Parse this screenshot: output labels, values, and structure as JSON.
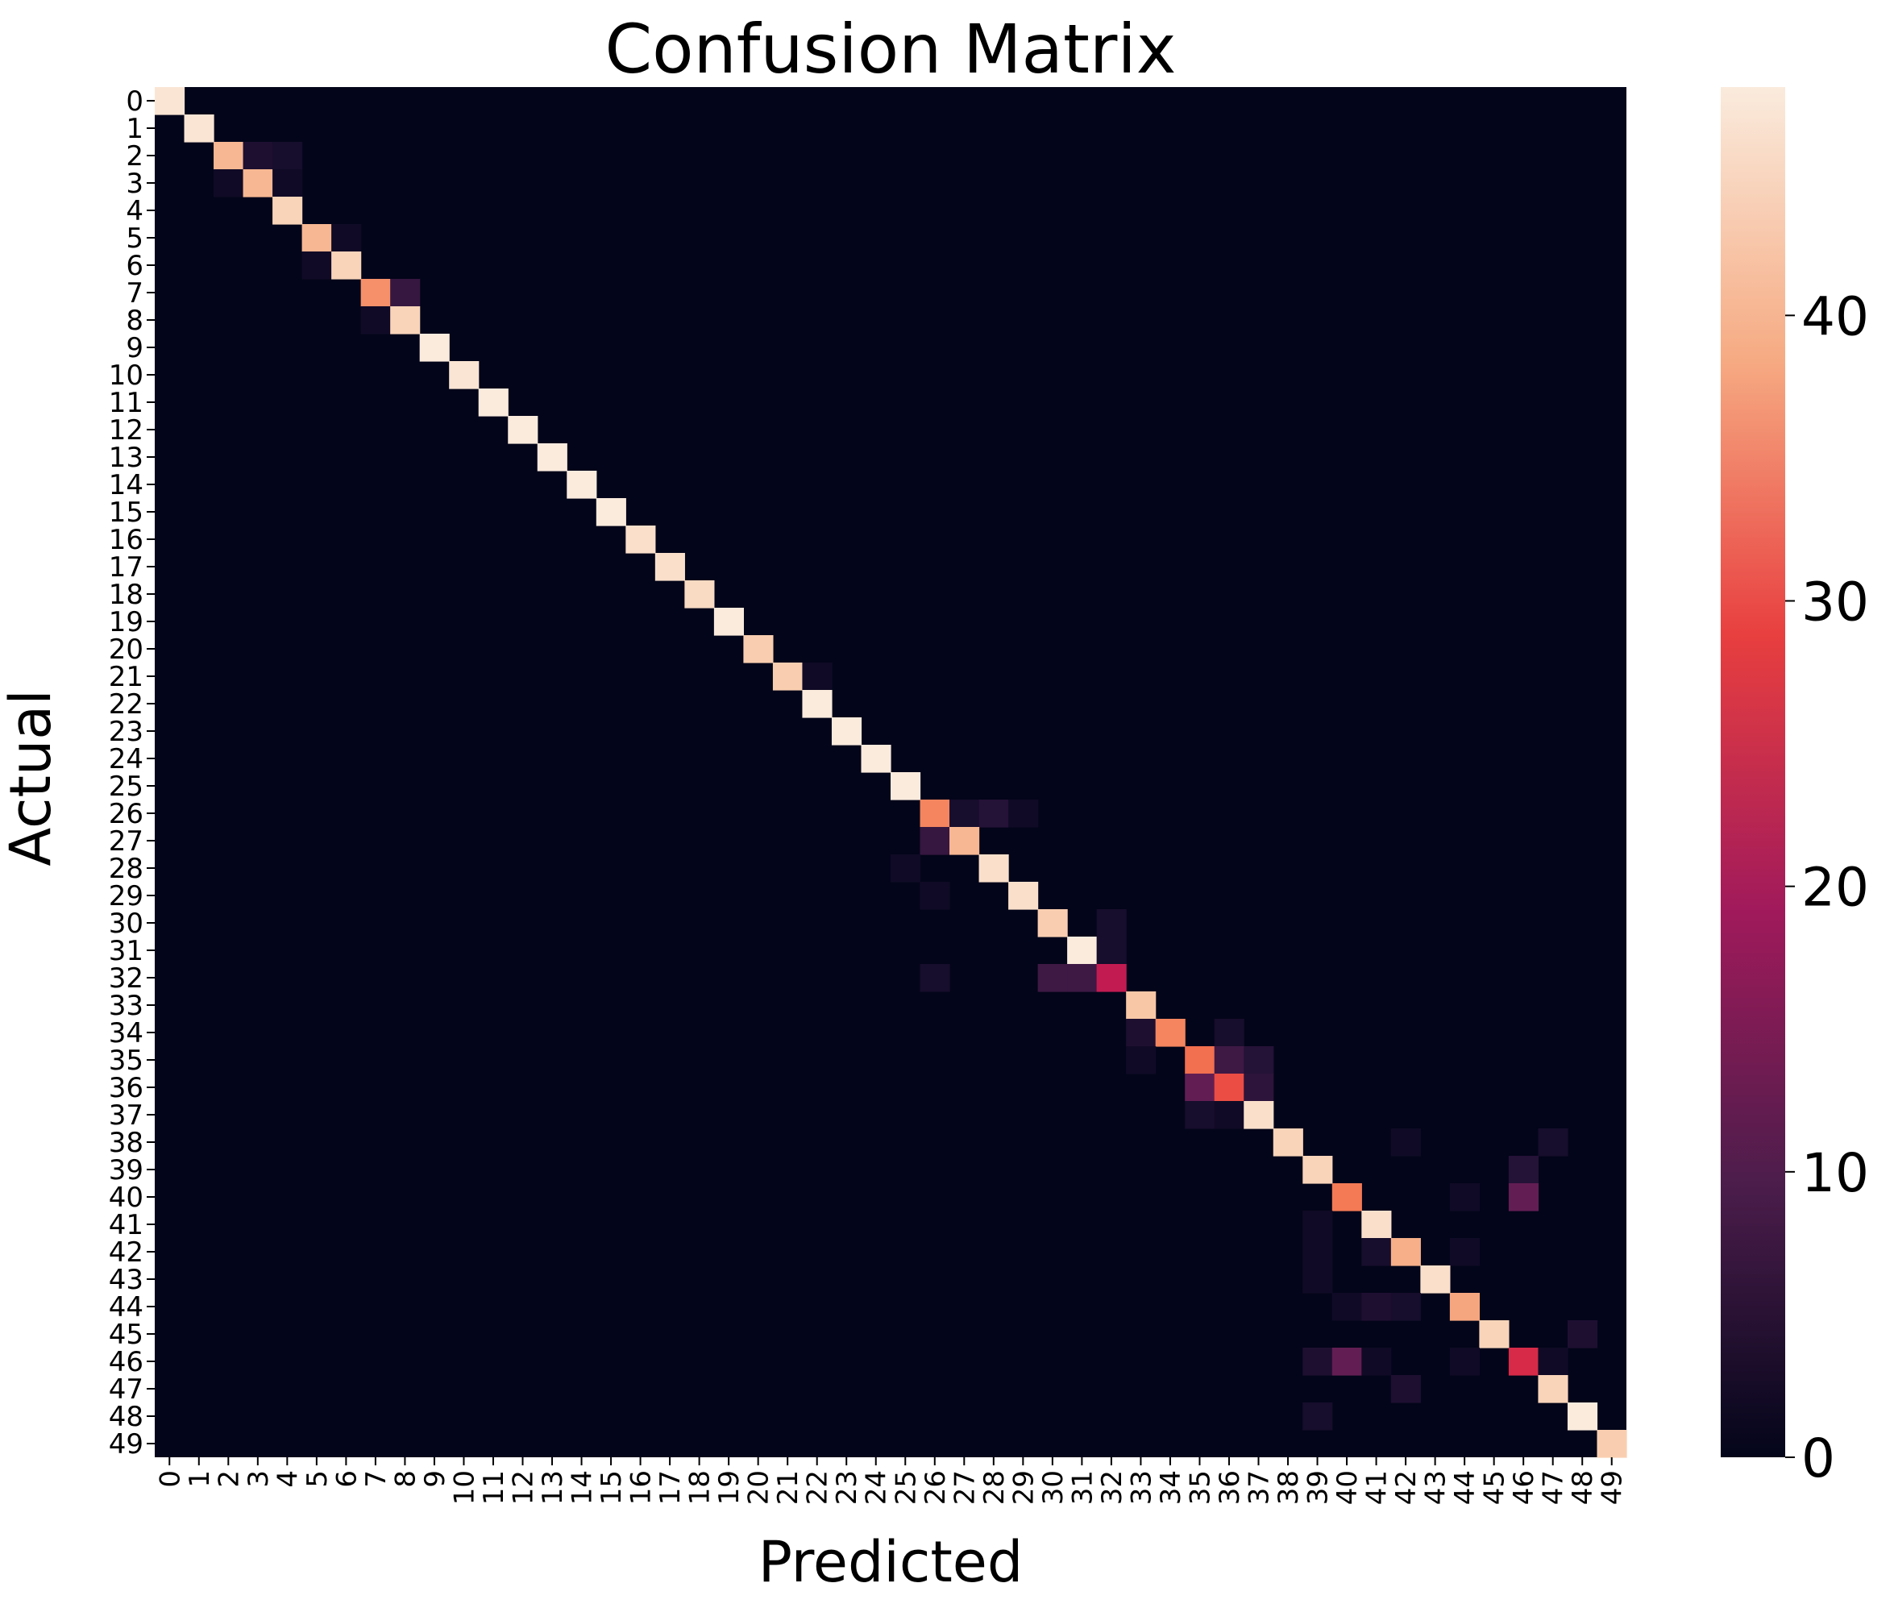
{
  "chart_data": {
    "type": "heatmap",
    "title": "Confusion Matrix",
    "xlabel": "Predicted",
    "ylabel": "Actual",
    "x_categories": [
      "0",
      "1",
      "2",
      "3",
      "4",
      "5",
      "6",
      "7",
      "8",
      "9",
      "10",
      "11",
      "12",
      "13",
      "14",
      "15",
      "16",
      "17",
      "18",
      "19",
      "20",
      "21",
      "22",
      "23",
      "24",
      "25",
      "26",
      "27",
      "28",
      "29",
      "30",
      "31",
      "32",
      "33",
      "34",
      "35",
      "36",
      "37",
      "38",
      "39",
      "40",
      "41",
      "42",
      "43",
      "44",
      "45",
      "46",
      "47",
      "48",
      "49"
    ],
    "y_categories": [
      "0",
      "1",
      "2",
      "3",
      "4",
      "5",
      "6",
      "7",
      "8",
      "9",
      "10",
      "11",
      "12",
      "13",
      "14",
      "15",
      "16",
      "17",
      "18",
      "19",
      "20",
      "21",
      "22",
      "23",
      "24",
      "25",
      "26",
      "27",
      "28",
      "29",
      "30",
      "31",
      "32",
      "33",
      "34",
      "35",
      "36",
      "37",
      "38",
      "39",
      "40",
      "41",
      "42",
      "43",
      "44",
      "45",
      "46",
      "47",
      "48",
      "49"
    ],
    "diagonal": [
      47,
      47,
      40,
      40,
      44,
      40,
      44,
      36,
      44,
      48,
      47,
      48,
      48,
      48,
      48,
      48,
      46,
      46,
      45,
      48,
      43,
      43,
      48,
      48,
      48,
      48,
      35,
      40,
      46,
      46,
      43,
      48,
      23,
      42,
      35,
      33,
      30,
      46,
      44,
      44,
      34,
      46,
      39,
      46,
      38,
      44,
      26,
      44,
      48,
      43
    ],
    "off_diagonal": [
      {
        "actual": 2,
        "predicted": 3,
        "value": 4
      },
      {
        "actual": 2,
        "predicted": 4,
        "value": 3
      },
      {
        "actual": 3,
        "predicted": 2,
        "value": 2
      },
      {
        "actual": 3,
        "predicted": 4,
        "value": 2
      },
      {
        "actual": 5,
        "predicted": 6,
        "value": 2
      },
      {
        "actual": 6,
        "predicted": 5,
        "value": 2
      },
      {
        "actual": 7,
        "predicted": 8,
        "value": 7
      },
      {
        "actual": 8,
        "predicted": 7,
        "value": 2
      },
      {
        "actual": 21,
        "predicted": 22,
        "value": 2
      },
      {
        "actual": 26,
        "predicted": 27,
        "value": 3
      },
      {
        "actual": 26,
        "predicted": 28,
        "value": 5
      },
      {
        "actual": 26,
        "predicted": 29,
        "value": 2
      },
      {
        "actual": 27,
        "predicted": 26,
        "value": 7
      },
      {
        "actual": 28,
        "predicted": 25,
        "value": 2
      },
      {
        "actual": 29,
        "predicted": 26,
        "value": 2
      },
      {
        "actual": 30,
        "predicted": 32,
        "value": 3
      },
      {
        "actual": 31,
        "predicted": 32,
        "value": 3
      },
      {
        "actual": 32,
        "predicted": 26,
        "value": 3
      },
      {
        "actual": 32,
        "predicted": 30,
        "value": 8
      },
      {
        "actual": 32,
        "predicted": 31,
        "value": 8
      },
      {
        "actual": 34,
        "predicted": 33,
        "value": 4
      },
      {
        "actual": 34,
        "predicted": 36,
        "value": 3
      },
      {
        "actual": 35,
        "predicted": 33,
        "value": 2
      },
      {
        "actual": 35,
        "predicted": 36,
        "value": 8
      },
      {
        "actual": 35,
        "predicted": 37,
        "value": 5
      },
      {
        "actual": 36,
        "predicted": 35,
        "value": 12
      },
      {
        "actual": 36,
        "predicted": 37,
        "value": 6
      },
      {
        "actual": 37,
        "predicted": 35,
        "value": 3
      },
      {
        "actual": 37,
        "predicted": 36,
        "value": 2
      },
      {
        "actual": 38,
        "predicted": 42,
        "value": 2
      },
      {
        "actual": 38,
        "predicted": 47,
        "value": 3
      },
      {
        "actual": 39,
        "predicted": 46,
        "value": 5
      },
      {
        "actual": 40,
        "predicted": 46,
        "value": 12
      },
      {
        "actual": 40,
        "predicted": 44,
        "value": 2
      },
      {
        "actual": 41,
        "predicted": 39,
        "value": 2
      },
      {
        "actual": 42,
        "predicted": 39,
        "value": 2
      },
      {
        "actual": 42,
        "predicted": 41,
        "value": 3
      },
      {
        "actual": 42,
        "predicted": 44,
        "value": 2
      },
      {
        "actual": 43,
        "predicted": 39,
        "value": 2
      },
      {
        "actual": 44,
        "predicted": 40,
        "value": 2
      },
      {
        "actual": 44,
        "predicted": 41,
        "value": 4
      },
      {
        "actual": 44,
        "predicted": 42,
        "value": 3
      },
      {
        "actual": 45,
        "predicted": 48,
        "value": 4
      },
      {
        "actual": 46,
        "predicted": 39,
        "value": 4
      },
      {
        "actual": 46,
        "predicted": 40,
        "value": 12
      },
      {
        "actual": 46,
        "predicted": 41,
        "value": 2
      },
      {
        "actual": 46,
        "predicted": 44,
        "value": 2
      },
      {
        "actual": 46,
        "predicted": 47,
        "value": 2
      },
      {
        "actual": 47,
        "predicted": 42,
        "value": 4
      },
      {
        "actual": 48,
        "predicted": 39,
        "value": 3
      }
    ],
    "colorbar": {
      "min": 0,
      "max": 48,
      "ticks": [
        0,
        10,
        20,
        30,
        40
      ],
      "colormap": "rocket"
    }
  }
}
